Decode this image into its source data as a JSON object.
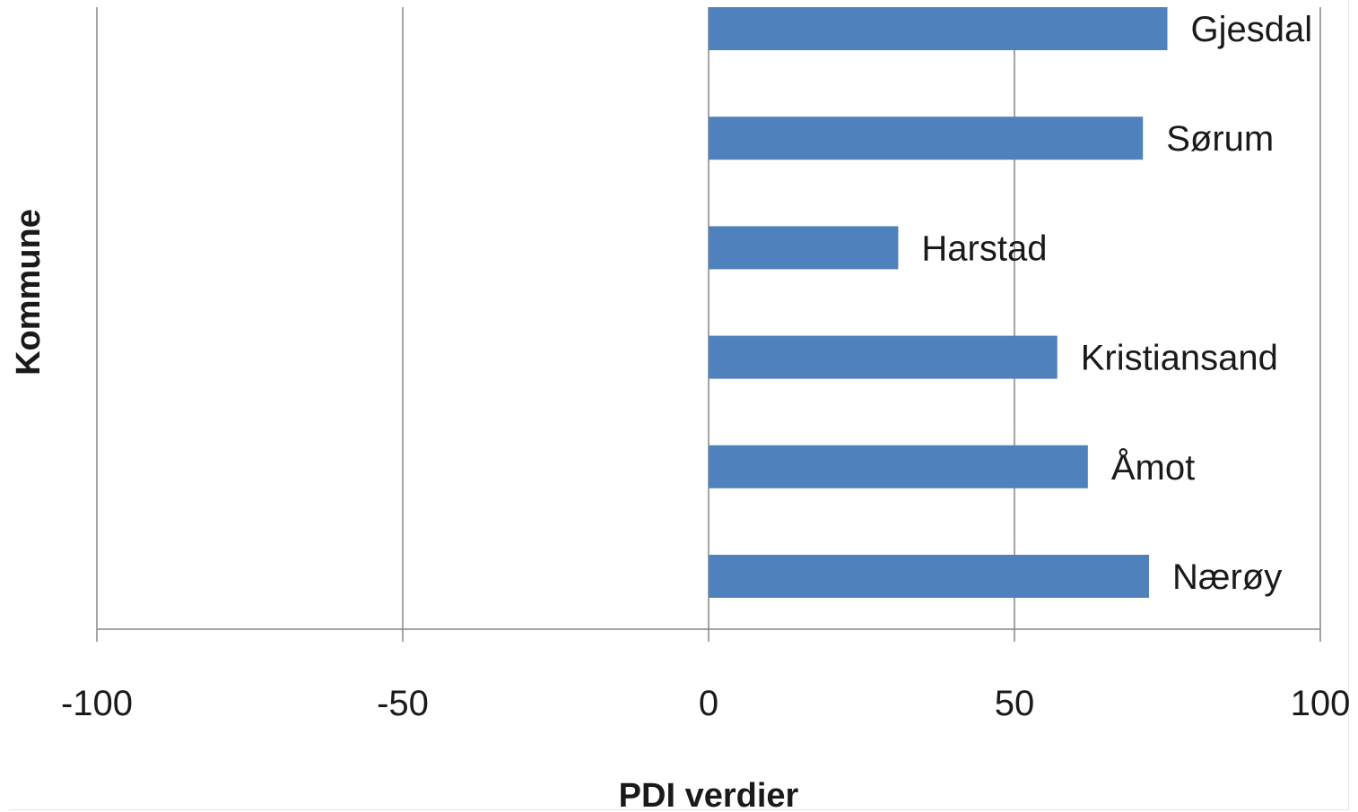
{
  "chart_data": {
    "type": "bar",
    "orientation": "horizontal",
    "categories": [
      "Gjesdal",
      "Sørum",
      "Harstad",
      "Kristiansand",
      "Åmot",
      "Nærøy"
    ],
    "values": [
      75,
      71,
      31,
      57,
      62,
      72
    ],
    "xlabel": "PDI verdier",
    "ylabel": "Kommune",
    "xlim": [
      -100,
      100
    ],
    "xticks": [
      "-100",
      "-50",
      "0",
      "50",
      "100"
    ],
    "grid": "vertical",
    "legend": "none",
    "bar_color": "#4f81bd",
    "gridline_color": "#868686"
  }
}
